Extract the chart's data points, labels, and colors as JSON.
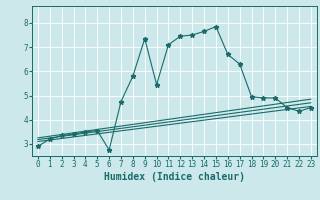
{
  "title": "",
  "xlabel": "Humidex (Indice chaleur)",
  "bg_color": "#cce8ea",
  "grid_color": "#ffffff",
  "line_color": "#1a6b6b",
  "xlim": [
    -0.5,
    23.5
  ],
  "ylim": [
    2.5,
    8.7
  ],
  "xticks": [
    0,
    1,
    2,
    3,
    4,
    5,
    6,
    7,
    8,
    9,
    10,
    11,
    12,
    13,
    14,
    15,
    16,
    17,
    18,
    19,
    20,
    21,
    22,
    23
  ],
  "yticks": [
    3,
    4,
    5,
    6,
    7,
    8
  ],
  "main_x": [
    0,
    1,
    2,
    3,
    4,
    5,
    6,
    7,
    8,
    9,
    10,
    11,
    12,
    13,
    14,
    15,
    16,
    17,
    18,
    19,
    20,
    21,
    22,
    23
  ],
  "main_y": [
    2.9,
    3.2,
    3.35,
    3.4,
    3.5,
    3.55,
    2.75,
    4.75,
    5.8,
    7.35,
    5.45,
    7.1,
    7.45,
    7.5,
    7.65,
    7.85,
    6.7,
    6.3,
    4.95,
    4.9,
    4.9,
    4.5,
    4.35,
    4.5
  ],
  "line1_x": [
    0,
    23
  ],
  "line1_y": [
    3.1,
    4.55
  ],
  "line2_x": [
    0,
    23
  ],
  "line2_y": [
    3.25,
    4.85
  ],
  "line3_x": [
    0,
    23
  ],
  "line3_y": [
    3.18,
    4.7
  ],
  "tick_fontsize": 5.5,
  "label_fontsize": 7
}
